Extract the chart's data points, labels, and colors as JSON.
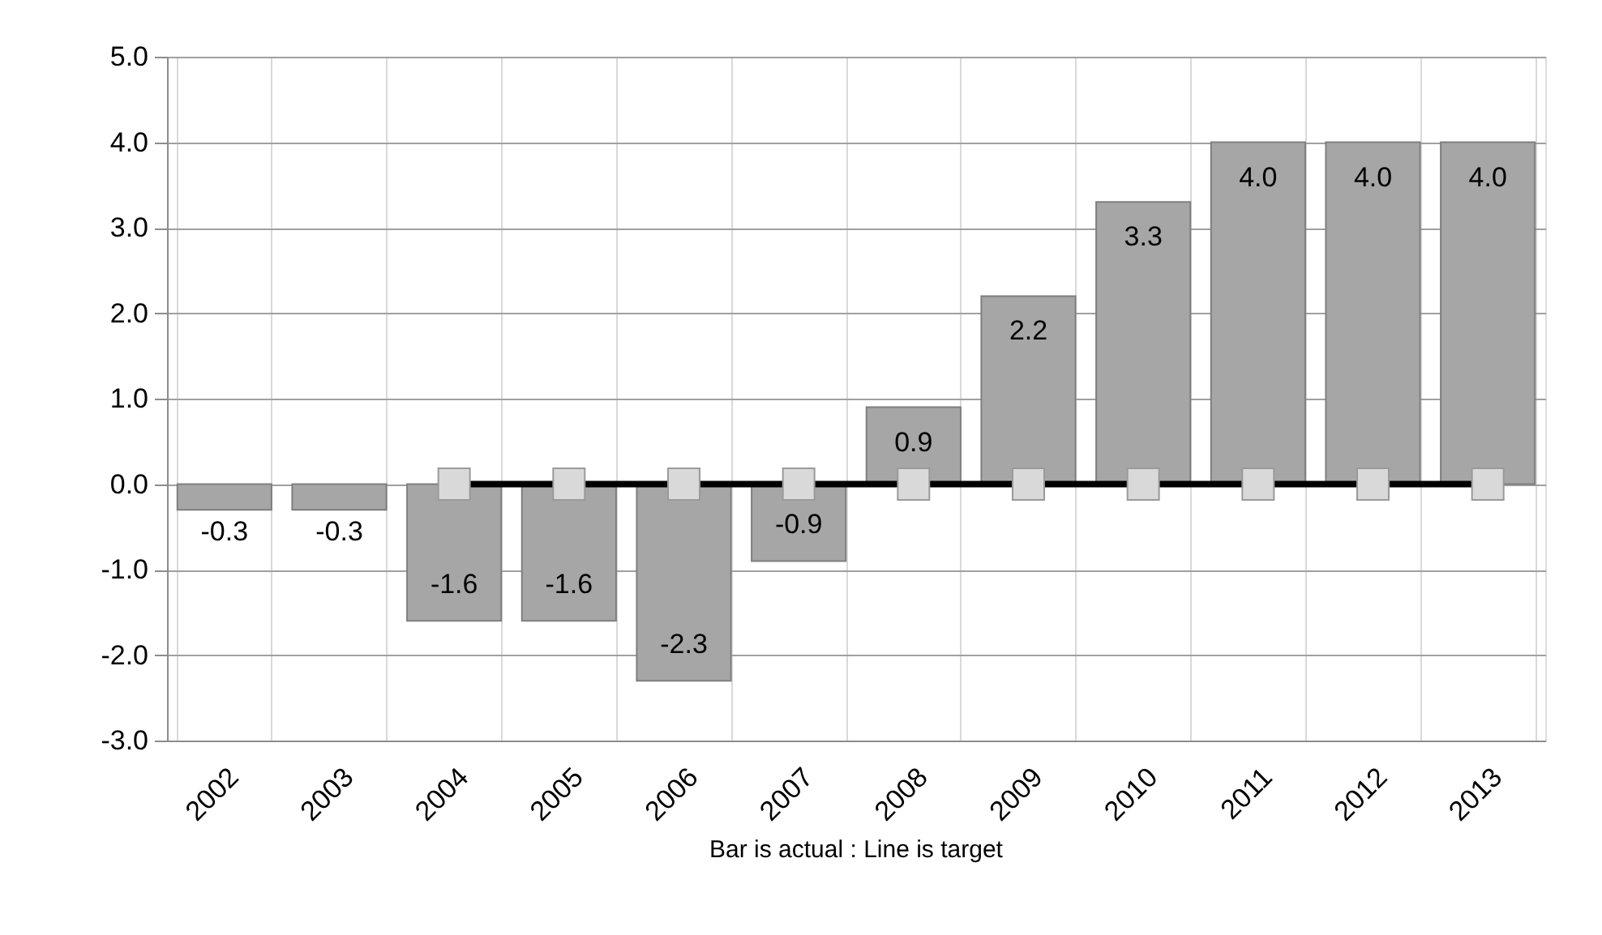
{
  "chart_data": {
    "type": "bar",
    "categories": [
      "2002",
      "2003",
      "2004",
      "2005",
      "2006",
      "2007",
      "2008",
      "2009",
      "2010",
      "2011",
      "2012",
      "2013"
    ],
    "series": [
      {
        "color": "#a6a6a6",
        "values": [
          -0.3,
          -0.3,
          -1.6,
          -1.6,
          -2.3,
          -0.9,
          0.9,
          2.2,
          3.3,
          4.0,
          4.0,
          4.0
        ],
        "value_labels": [
          "-0.3",
          "-0.3",
          "-1.6",
          "-1.6",
          "-2.3",
          "-0.9",
          "0.9",
          "2.2",
          "3.3",
          "4.0",
          "4.0",
          "4.0"
        ]
      },
      {
        "type": "line",
        "color": "#000000",
        "marker": "square",
        "values": [
          null,
          null,
          0,
          0,
          0,
          0,
          0,
          0,
          0,
          0,
          0,
          0
        ]
      }
    ],
    "ylim": [
      -3,
      5
    ],
    "yticks": [
      {
        "value": -3,
        "label": "-3.0"
      },
      {
        "value": -2,
        "label": "-2.0"
      },
      {
        "value": -1,
        "label": "-1.0"
      },
      {
        "value": 0,
        "label": "0.0"
      },
      {
        "value": 1,
        "label": "1.0"
      },
      {
        "value": 2,
        "label": "2.0"
      },
      {
        "value": 3,
        "label": "3.0"
      },
      {
        "value": 4,
        "label": "4.0"
      },
      {
        "value": 5,
        "label": "5.0"
      }
    ],
    "grid": true,
    "annotations": [
      "Bar is actual  :  Line is target"
    ]
  }
}
